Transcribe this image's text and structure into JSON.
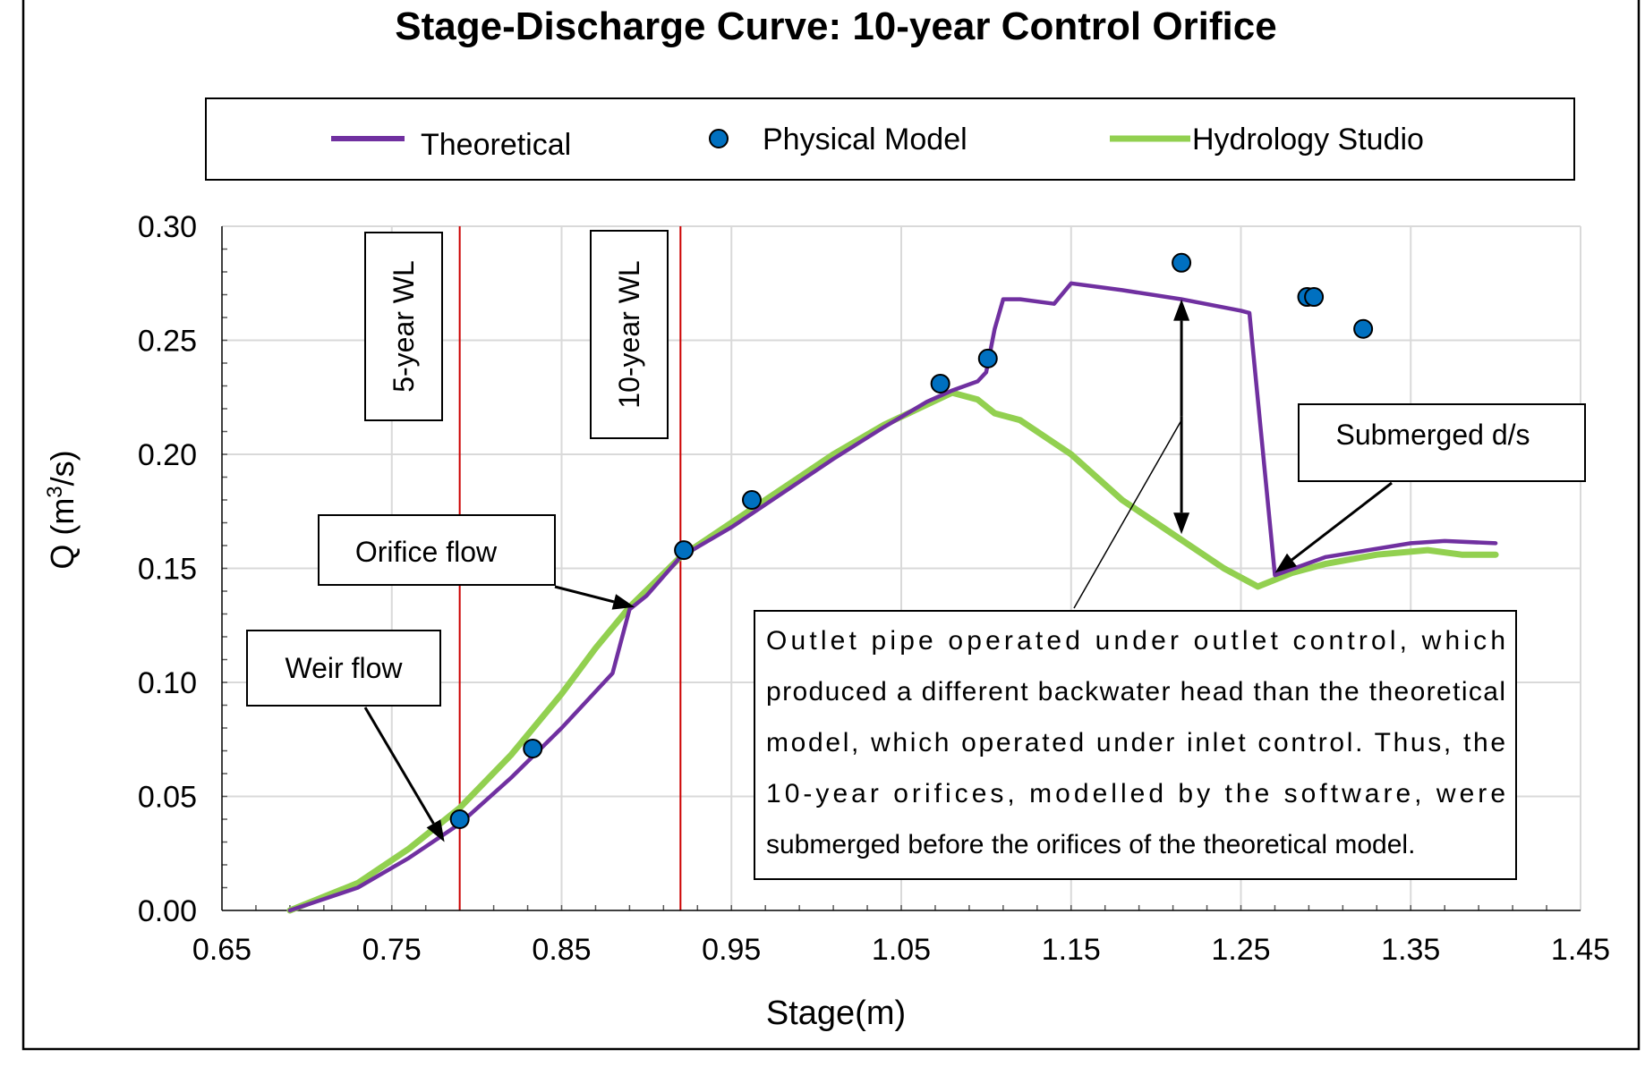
{
  "chart_data": {
    "type": "line",
    "title": "Stage-Discharge Curve: 10-year Control Orifice",
    "xlabel": "Stage(m)",
    "ylabel_main": "Q (m",
    "ylabel_sup": "3",
    "ylabel_end": "/s)",
    "xlim": [
      0.65,
      1.45
    ],
    "ylim": [
      0,
      0.3
    ],
    "grid": true,
    "legend_position": "top",
    "x_ticks": [
      0.65,
      0.75,
      0.85,
      0.95,
      1.05,
      1.15,
      1.25,
      1.35,
      1.45
    ],
    "x_tick_labels": [
      "0.65",
      "0.75",
      "0.85",
      "0.95",
      "1.05",
      "1.15",
      "1.25",
      "1.35",
      "1.45"
    ],
    "y_ticks": [
      0,
      0.05,
      0.1,
      0.15,
      0.2,
      0.25,
      0.3
    ],
    "y_tick_labels": [
      "0.00",
      "0.05",
      "0.10",
      "0.15",
      "0.20",
      "0.25",
      "0.30"
    ],
    "series": [
      {
        "name": "Theoretical",
        "kind": "line",
        "color": "#7030A0",
        "points": [
          [
            0.69,
            0.0
          ],
          [
            0.73,
            0.01
          ],
          [
            0.76,
            0.023
          ],
          [
            0.79,
            0.038
          ],
          [
            0.82,
            0.058
          ],
          [
            0.85,
            0.08
          ],
          [
            0.865,
            0.092
          ],
          [
            0.875,
            0.1
          ],
          [
            0.88,
            0.104
          ],
          [
            0.885,
            0.118
          ],
          [
            0.89,
            0.132
          ],
          [
            0.9,
            0.138
          ],
          [
            0.92,
            0.155
          ],
          [
            0.95,
            0.168
          ],
          [
            0.98,
            0.183
          ],
          [
            1.01,
            0.198
          ],
          [
            1.04,
            0.212
          ],
          [
            1.065,
            0.223
          ],
          [
            1.08,
            0.228
          ],
          [
            1.095,
            0.232
          ],
          [
            1.1,
            0.236
          ],
          [
            1.105,
            0.255
          ],
          [
            1.11,
            0.268
          ],
          [
            1.12,
            0.268
          ],
          [
            1.14,
            0.266
          ],
          [
            1.15,
            0.275
          ],
          [
            1.18,
            0.272
          ],
          [
            1.215,
            0.268
          ],
          [
            1.25,
            0.263
          ],
          [
            1.255,
            0.262
          ],
          [
            1.27,
            0.147
          ],
          [
            1.3,
            0.155
          ],
          [
            1.35,
            0.161
          ],
          [
            1.37,
            0.162
          ],
          [
            1.4,
            0.161
          ]
        ]
      },
      {
        "name": "Physical Model",
        "kind": "scatter",
        "color": "#0070C0",
        "points": [
          [
            0.79,
            0.04
          ],
          [
            0.833,
            0.071
          ],
          [
            0.922,
            0.158
          ],
          [
            0.962,
            0.18
          ],
          [
            1.073,
            0.231
          ],
          [
            1.101,
            0.242
          ],
          [
            1.215,
            0.284
          ],
          [
            1.289,
            0.269
          ],
          [
            1.293,
            0.269
          ],
          [
            1.322,
            0.255
          ]
        ]
      },
      {
        "name": "Hydrology Studio",
        "kind": "line",
        "color": "#92D050",
        "points": [
          [
            0.69,
            0.0
          ],
          [
            0.73,
            0.012
          ],
          [
            0.76,
            0.027
          ],
          [
            0.79,
            0.045
          ],
          [
            0.82,
            0.068
          ],
          [
            0.85,
            0.095
          ],
          [
            0.87,
            0.115
          ],
          [
            0.89,
            0.133
          ],
          [
            0.92,
            0.155
          ],
          [
            0.95,
            0.17
          ],
          [
            0.98,
            0.185
          ],
          [
            1.01,
            0.2
          ],
          [
            1.04,
            0.213
          ],
          [
            1.06,
            0.22
          ],
          [
            1.08,
            0.227
          ],
          [
            1.095,
            0.224
          ],
          [
            1.105,
            0.218
          ],
          [
            1.12,
            0.215
          ],
          [
            1.15,
            0.2
          ],
          [
            1.18,
            0.18
          ],
          [
            1.21,
            0.165
          ],
          [
            1.24,
            0.15
          ],
          [
            1.26,
            0.142
          ],
          [
            1.28,
            0.148
          ],
          [
            1.3,
            0.152
          ],
          [
            1.33,
            0.156
          ],
          [
            1.36,
            0.158
          ],
          [
            1.38,
            0.156
          ],
          [
            1.4,
            0.156
          ]
        ]
      }
    ],
    "vertical_markers": [
      {
        "x": 0.79,
        "label": "5-year WL",
        "color": "#CC0000"
      },
      {
        "x": 0.92,
        "label": "10-year WL",
        "color": "#CC0000"
      }
    ],
    "annotations": [
      {
        "id": "weir",
        "text": "Weir flow",
        "arrow_to": [
          0.781,
          0.03
        ]
      },
      {
        "id": "orifice",
        "text": "Orifice flow",
        "arrow_to": [
          0.893,
          0.133
        ]
      },
      {
        "id": "submerged",
        "text": "Submerged d/s",
        "arrow_to": [
          1.27,
          0.148
        ]
      },
      {
        "id": "note",
        "lines": [
          "Outlet pipe operated under outlet control, which",
          "produced a different backwater head than the theoretical",
          "model, which operated under inlet control. Thus, the",
          "10-year orifices, modelled by the software, were",
          "submerged before the orifices of the theoretical model."
        ]
      }
    ],
    "double_arrow": {
      "x": 1.215,
      "y_top": 0.268,
      "y_bottom": 0.165
    }
  }
}
